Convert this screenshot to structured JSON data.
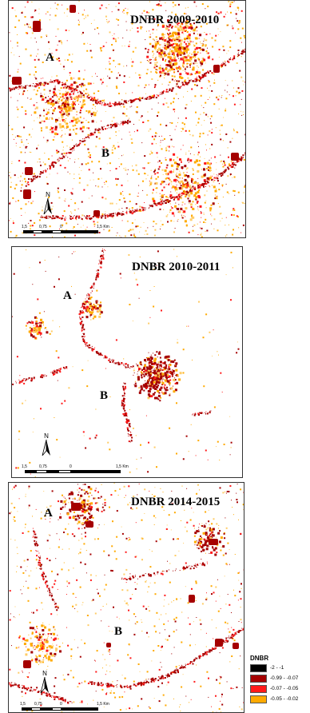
{
  "panels": [
    {
      "title": "DNBR 2009-2010",
      "site_a": "A",
      "site_b": "B",
      "north": "N",
      "scale": [
        "1,5",
        "0,75",
        "0",
        "1,5 Km"
      ]
    },
    {
      "title": "DNBR 2010-2011",
      "site_a": "A",
      "site_b": "B",
      "north": "N",
      "scale": [
        "1,5",
        "0,75",
        "0",
        "1,5 Km"
      ]
    },
    {
      "title": "DNBR 2014-2015",
      "site_a": "A",
      "site_b": "B",
      "north": "N",
      "scale": [
        "1,5",
        "0,75",
        "0",
        "1,5 Km"
      ]
    }
  ],
  "legend": {
    "title": "DNBR",
    "classes": [
      {
        "label": "-2 - -1",
        "color": "#000000"
      },
      {
        "label": "-0.99 - -0.07",
        "color": "#a50000"
      },
      {
        "label": "-0.07 - -0.05",
        "color": "#ff1a1a"
      },
      {
        "label": "-0.05 - -0.02",
        "color": "#ffaa00"
      }
    ]
  }
}
